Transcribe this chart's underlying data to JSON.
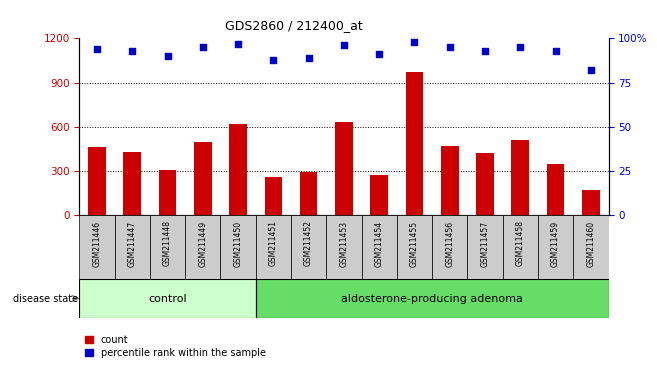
{
  "title": "GDS2860 / 212400_at",
  "samples": [
    "GSM211446",
    "GSM211447",
    "GSM211448",
    "GSM211449",
    "GSM211450",
    "GSM211451",
    "GSM211452",
    "GSM211453",
    "GSM211454",
    "GSM211455",
    "GSM211456",
    "GSM211457",
    "GSM211458",
    "GSM211459",
    "GSM211460"
  ],
  "counts": [
    460,
    430,
    310,
    500,
    620,
    260,
    295,
    630,
    270,
    975,
    470,
    420,
    510,
    350,
    175
  ],
  "percentiles": [
    94,
    93,
    90,
    95,
    97,
    88,
    89,
    96,
    91,
    98,
    95,
    93,
    95,
    93,
    82
  ],
  "control_count": 5,
  "group_labels": [
    "control",
    "aldosterone-producing adenoma"
  ],
  "control_color": "#ccffcc",
  "adenoma_color": "#66dd66",
  "bar_color": "#cc0000",
  "dot_color": "#0000cc",
  "bg_color": "#ffffff",
  "tick_color_left": "#cc0000",
  "tick_color_right": "#0000cc",
  "ylim_left": [
    0,
    1200
  ],
  "ylim_right": [
    0,
    100
  ],
  "yticks_left": [
    0,
    300,
    600,
    900,
    1200
  ],
  "ytick_labels_left": [
    "0",
    "300",
    "600",
    "900",
    "1200"
  ],
  "yticks_right": [
    0,
    25,
    50,
    75,
    100
  ],
  "ytick_labels_right": [
    "0",
    "25",
    "50",
    "75",
    "100%"
  ],
  "grid_values": [
    300,
    600,
    900
  ],
  "legend_count_label": "count",
  "legend_percentile_label": "percentile rank within the sample",
  "disease_state_label": "disease state",
  "sample_box_color": "#cccccc",
  "bar_width": 0.5
}
